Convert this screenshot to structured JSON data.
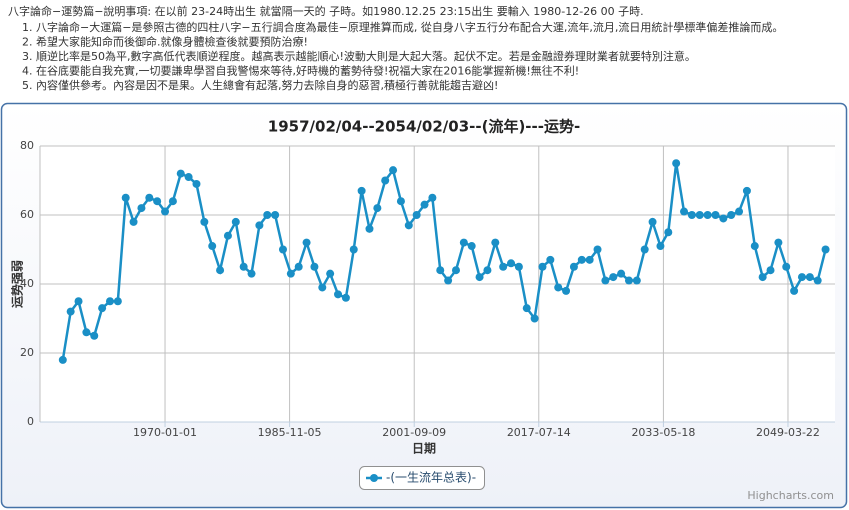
{
  "notes": {
    "heading": "八字論命−運勢篇−說明事項:     在以前 23-24時出生 就當隔一天的 子時。如1980.12.25 23:15出生 要輸入 1980-12-26 00 子時.",
    "lines": [
      "1. 八字論命−大運篇−是參照古德的四柱八字−五行調合度為最佳−原理推算而成, 從自身八字五行分布配合大運,流年,流月,流日用統計學標準偏差推論而成。",
      "2. 希望大家能知命而後御命.就像身體檢查後就要預防治療!",
      "3. 順逆比率是50為平,數字高低代表順逆程度。越高表示越能順心!波動大則是大起大落。起伏不定。若是金融證券理財業者就要特別注意。",
      "4. 在谷底要能自我充實,一切要謙卑學習自我警惕來等待,好時機的蓄勢待發!祝福大家在2016能掌握新機!無往不利!",
      "5. 內容僅供參考。內容是因不是果。人生總會有起落,努力去除自身的惡習,積極行善就能趨吉避凶!"
    ]
  },
  "chart_data": {
    "type": "line",
    "title": "1957/02/04--2054/02/03--(流年)---运势-",
    "x_label": "日期",
    "y_label": "运势强弱",
    "credits": "Highcharts.com",
    "x": [
      1957,
      1958,
      1959,
      1960,
      1961,
      1962,
      1963,
      1964,
      1965,
      1966,
      1967,
      1968,
      1969,
      1970,
      1971,
      1972,
      1973,
      1974,
      1975,
      1976,
      1977,
      1978,
      1979,
      1980,
      1981,
      1982,
      1983,
      1984,
      1985,
      1986,
      1987,
      1988,
      1989,
      1990,
      1991,
      1992,
      1993,
      1994,
      1995,
      1996,
      1997,
      1998,
      1999,
      2000,
      2001,
      2002,
      2003,
      2004,
      2005,
      2006,
      2007,
      2008,
      2009,
      2010,
      2011,
      2012,
      2013,
      2014,
      2015,
      2016,
      2017,
      2018,
      2019,
      2020,
      2021,
      2022,
      2023,
      2024,
      2025,
      2026,
      2027,
      2028,
      2029,
      2030,
      2031,
      2032,
      2033,
      2034,
      2035,
      2036,
      2037,
      2038,
      2039,
      2040,
      2041,
      2042,
      2043,
      2044,
      2045,
      2046,
      2047,
      2048,
      2049,
      2050,
      2051,
      2052,
      2053,
      2054
    ],
    "series": [
      {
        "name": "-(一生流年总表)-",
        "color": "#1a8fc6",
        "values": [
          18,
          32,
          35,
          26,
          25,
          33,
          35,
          35,
          65,
          58,
          62,
          65,
          64,
          61,
          64,
          72,
          71,
          69,
          58,
          51,
          44,
          54,
          58,
          45,
          43,
          57,
          60,
          60,
          50,
          43,
          45,
          52,
          45,
          39,
          43,
          37,
          36,
          50,
          67,
          56,
          62,
          70,
          73,
          64,
          57,
          60,
          63,
          65,
          44,
          41,
          44,
          52,
          51,
          42,
          44,
          52,
          45,
          46,
          45,
          33,
          30,
          45,
          47,
          39,
          38,
          45,
          47,
          47,
          50,
          41,
          42,
          43,
          41,
          41,
          50,
          58,
          51,
          55,
          75,
          61,
          60,
          60,
          60,
          60,
          59,
          60,
          61,
          67,
          51,
          42,
          44,
          52,
          45,
          38,
          42,
          42,
          41,
          50
        ]
      }
    ],
    "xlim": [
      1954.1,
      2055.2
    ],
    "xticks": [
      {
        "value": 1970.0,
        "label": "1970-01-01"
      },
      {
        "value": 1985.84,
        "label": "1985-11-05"
      },
      {
        "value": 2001.69,
        "label": "2001-09-09"
      },
      {
        "value": 2017.53,
        "label": "2017-07-14"
      },
      {
        "value": 2033.38,
        "label": "2033-05-18"
      },
      {
        "value": 2049.22,
        "label": "2049-03-22"
      }
    ],
    "ylim": [
      0,
      80
    ],
    "yticks": [
      0,
      20,
      40,
      60,
      80
    ],
    "grid": true
  }
}
